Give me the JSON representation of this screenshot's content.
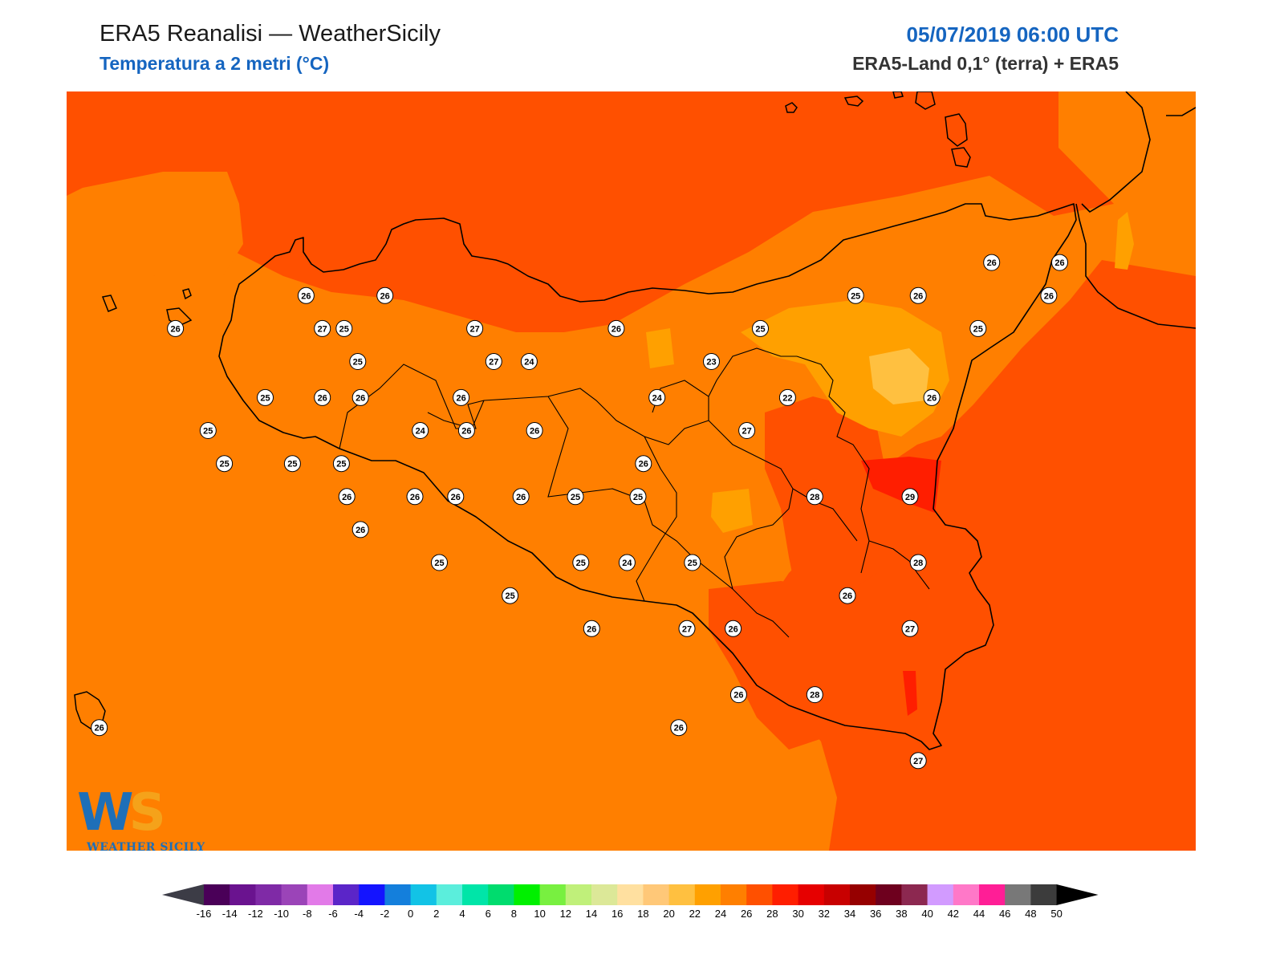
{
  "header": {
    "title": "ERA5 Reanalisi — WeatherSicily",
    "subtitle": "Temperatura a 2 metri (°C)",
    "datetime": "05/07/2019 06:00 UTC",
    "source": "ERA5-Land 0,1° (terra) + ERA5"
  },
  "map": {
    "region": "Sicily",
    "variable": "2m temperature",
    "background_color": "#ff7f00",
    "station_values": [
      {
        "v": "26",
        "lon": 12.73,
        "lat": 38.1
      },
      {
        "v": "26",
        "lon": 12.25,
        "lat": 37.99
      },
      {
        "v": "27",
        "lon": 12.79,
        "lat": 37.99
      },
      {
        "v": "25",
        "lon": 12.87,
        "lat": 37.99
      },
      {
        "v": "26",
        "lon": 13.02,
        "lat": 38.1
      },
      {
        "v": "27",
        "lon": 13.35,
        "lat": 37.99
      },
      {
        "v": "26",
        "lon": 13.87,
        "lat": 37.99
      },
      {
        "v": "25",
        "lon": 14.4,
        "lat": 37.99
      },
      {
        "v": "25",
        "lon": 14.75,
        "lat": 38.1
      },
      {
        "v": "26",
        "lon": 14.98,
        "lat": 38.1
      },
      {
        "v": "26",
        "lon": 15.25,
        "lat": 38.21
      },
      {
        "v": "26",
        "lon": 15.5,
        "lat": 38.21
      },
      {
        "v": "26",
        "lon": 15.46,
        "lat": 38.1
      },
      {
        "v": "25",
        "lon": 15.2,
        "lat": 37.99
      },
      {
        "v": "25",
        "lon": 12.58,
        "lat": 37.76
      },
      {
        "v": "26",
        "lon": 12.79,
        "lat": 37.76
      },
      {
        "v": "26",
        "lon": 12.93,
        "lat": 37.76
      },
      {
        "v": "25",
        "lon": 12.92,
        "lat": 37.88
      },
      {
        "v": "27",
        "lon": 13.42,
        "lat": 37.88
      },
      {
        "v": "24",
        "lon": 13.55,
        "lat": 37.88
      },
      {
        "v": "26",
        "lon": 13.3,
        "lat": 37.76
      },
      {
        "v": "24",
        "lon": 14.02,
        "lat": 37.76
      },
      {
        "v": "23",
        "lon": 14.22,
        "lat": 37.88
      },
      {
        "v": "22",
        "lon": 14.5,
        "lat": 37.76
      },
      {
        "v": "26",
        "lon": 15.03,
        "lat": 37.76
      },
      {
        "v": "25",
        "lon": 12.37,
        "lat": 37.65
      },
      {
        "v": "24",
        "lon": 13.15,
        "lat": 37.65
      },
      {
        "v": "26",
        "lon": 13.32,
        "lat": 37.65
      },
      {
        "v": "26",
        "lon": 13.57,
        "lat": 37.65
      },
      {
        "v": "27",
        "lon": 14.35,
        "lat": 37.65
      },
      {
        "v": "25",
        "lon": 12.43,
        "lat": 37.54
      },
      {
        "v": "25",
        "lon": 12.68,
        "lat": 37.54
      },
      {
        "v": "25",
        "lon": 12.86,
        "lat": 37.54
      },
      {
        "v": "26",
        "lon": 13.97,
        "lat": 37.54
      },
      {
        "v": "26",
        "lon": 12.88,
        "lat": 37.43
      },
      {
        "v": "26",
        "lon": 13.13,
        "lat": 37.43
      },
      {
        "v": "26",
        "lon": 13.28,
        "lat": 37.43
      },
      {
        "v": "26",
        "lon": 13.52,
        "lat": 37.43
      },
      {
        "v": "25",
        "lon": 13.72,
        "lat": 37.43
      },
      {
        "v": "25",
        "lon": 13.95,
        "lat": 37.43
      },
      {
        "v": "28",
        "lon": 14.6,
        "lat": 37.43
      },
      {
        "v": "29",
        "lon": 14.95,
        "lat": 37.43
      },
      {
        "v": "26",
        "lon": 12.93,
        "lat": 37.32
      },
      {
        "v": "25",
        "lon": 13.22,
        "lat": 37.21
      },
      {
        "v": "25",
        "lon": 13.74,
        "lat": 37.21
      },
      {
        "v": "24",
        "lon": 13.91,
        "lat": 37.21
      },
      {
        "v": "25",
        "lon": 14.15,
        "lat": 37.21
      },
      {
        "v": "28",
        "lon": 14.98,
        "lat": 37.21
      },
      {
        "v": "25",
        "lon": 13.48,
        "lat": 37.1
      },
      {
        "v": "26",
        "lon": 14.72,
        "lat": 37.1
      },
      {
        "v": "26",
        "lon": 13.78,
        "lat": 36.99
      },
      {
        "v": "27",
        "lon": 14.13,
        "lat": 36.99
      },
      {
        "v": "26",
        "lon": 14.3,
        "lat": 36.99
      },
      {
        "v": "27",
        "lon": 14.95,
        "lat": 36.99
      },
      {
        "v": "26",
        "lon": 14.32,
        "lat": 36.77
      },
      {
        "v": "28",
        "lon": 14.6,
        "lat": 36.77
      },
      {
        "v": "26",
        "lon": 14.1,
        "lat": 36.66
      },
      {
        "v": "27",
        "lon": 14.98,
        "lat": 36.55
      },
      {
        "v": "26",
        "lon": 11.97,
        "lat": 36.66
      }
    ]
  },
  "colorbar": {
    "ticks": [
      "-16",
      "-14",
      "-12",
      "-10",
      "-8",
      "-6",
      "-4",
      "-2",
      "0",
      "2",
      "4",
      "6",
      "8",
      "10",
      "12",
      "14",
      "16",
      "18",
      "20",
      "22",
      "24",
      "26",
      "28",
      "30",
      "32",
      "34",
      "36",
      "38",
      "40",
      "42",
      "44",
      "46",
      "48",
      "50"
    ],
    "colors": [
      "#4a0058",
      "#6a138f",
      "#7f2aa6",
      "#9b44b8",
      "#e27ae8",
      "#5b25c8",
      "#1414ff",
      "#147fdc",
      "#12c3e6",
      "#5beedc",
      "#00e5a8",
      "#00dc6e",
      "#00f000",
      "#78f040",
      "#c0f07a",
      "#dce898",
      "#ffe0a0",
      "#ffc878",
      "#ffc040",
      "#ffa000",
      "#ff7f00",
      "#ff5000",
      "#ff1e00",
      "#e60000",
      "#c80000",
      "#960000",
      "#6e001e",
      "#8c2850",
      "#d29bff",
      "#ff78c8",
      "#ff1e96",
      "#787878",
      "#3c3c3c"
    ],
    "under_color": "#3c3c46",
    "over_color": "#000000"
  },
  "logo": {
    "letters_a": "W",
    "letters_b": "S",
    "caption": "WEATHER SICILY"
  }
}
